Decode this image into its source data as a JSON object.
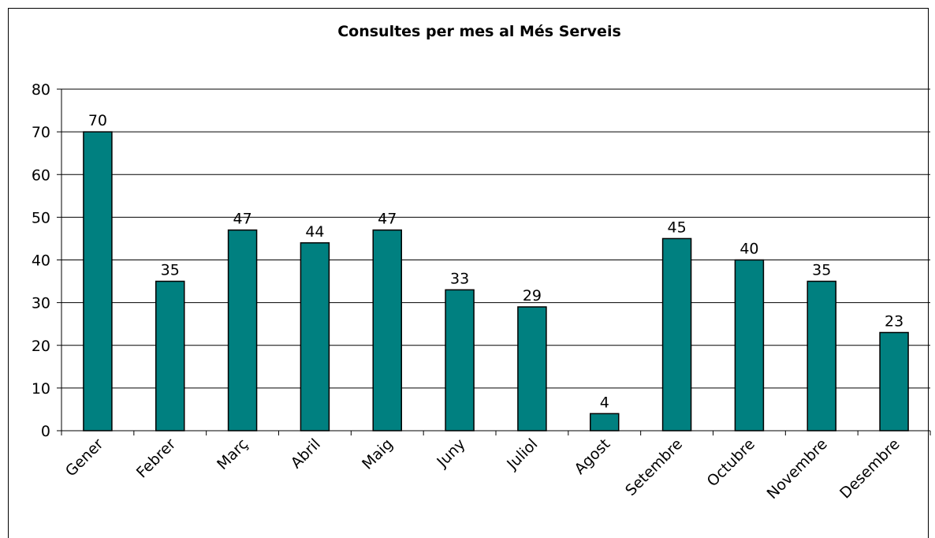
{
  "chart_data": {
    "type": "bar",
    "title": "Consultes per mes al Més Serveis",
    "categories": [
      "Gener",
      "Febrer",
      "Març",
      "Abril",
      "Maig",
      "Juny",
      "Juliol",
      "Agost",
      "Setembre",
      "Octubre",
      "Novembre",
      "Desembre"
    ],
    "values": [
      70,
      35,
      47,
      44,
      47,
      33,
      29,
      4,
      45,
      40,
      35,
      23
    ],
    "color": "#008080",
    "ylim": [
      0,
      80
    ],
    "yticks": [
      0,
      10,
      20,
      30,
      40,
      50,
      60,
      70,
      80
    ],
    "grid": true
  }
}
